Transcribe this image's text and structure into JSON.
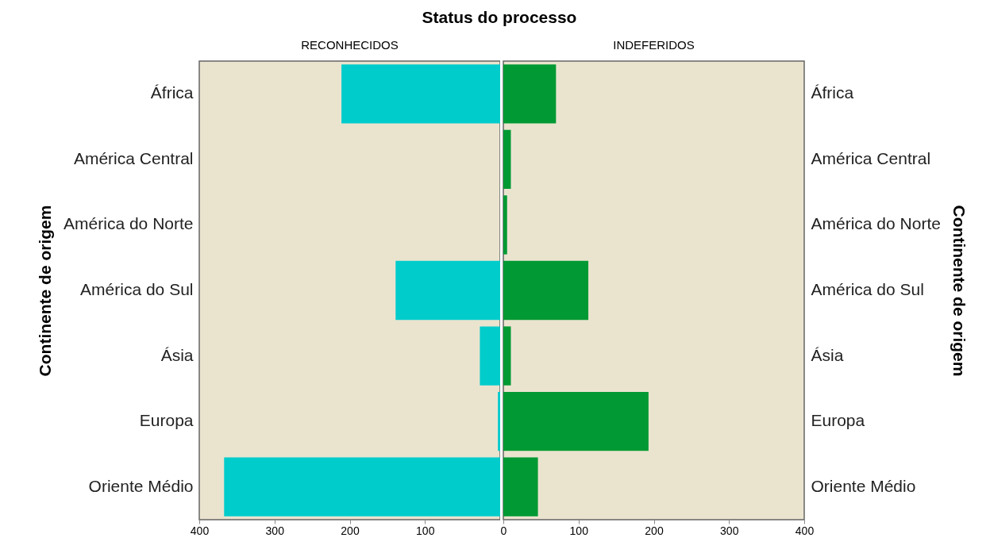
{
  "chart_data": [
    {
      "type": "bar",
      "orientation": "horizontal",
      "title": "Status do processo",
      "subtitle": "RECONHECIDOS",
      "ylabel": "Continente de origem",
      "categories": [
        "África",
        "América Central",
        "América do Norte",
        "América do Sul",
        "Ásia",
        "Europa",
        "Oriente Médio"
      ],
      "values": [
        211,
        0,
        0,
        139,
        27,
        3,
        367
      ],
      "color": "#00cccc",
      "xlim": [
        400,
        0
      ],
      "xticks": [
        400,
        300,
        200,
        100
      ]
    },
    {
      "type": "bar",
      "orientation": "horizontal",
      "subtitle": "INDEFERIDOS",
      "ylabel": "Continente de origem",
      "categories": [
        "África",
        "América Central",
        "América do Norte",
        "América do Sul",
        "Ásia",
        "Europa",
        "Oriente Médio"
      ],
      "values": [
        70,
        10,
        5,
        113,
        10,
        193,
        46
      ],
      "color": "#009933",
      "xlim": [
        0,
        400
      ],
      "xticks": [
        0,
        100,
        200,
        300,
        400
      ]
    }
  ]
}
